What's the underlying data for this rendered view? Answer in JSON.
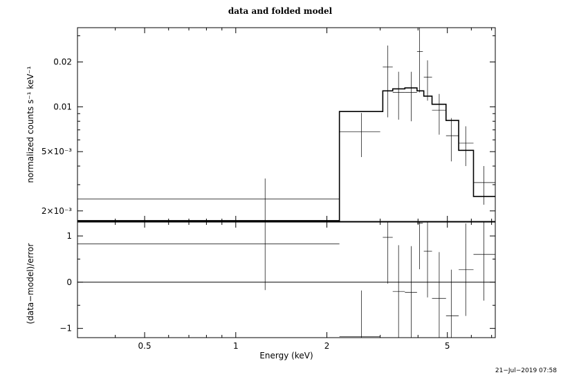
{
  "chart_data": [
    {
      "type": "step-line-with-errorbars",
      "title": "data and folded model",
      "ylabel": "normalized counts s⁻¹ keV⁻¹",
      "x_scale": "log",
      "y_scale": "log",
      "xlim": [
        0.3,
        7.2
      ],
      "ylim": [
        0.0017,
        0.034
      ],
      "y_ticks": [
        {
          "value": 0.002,
          "label": "2×10⁻³"
        },
        {
          "value": 0.005,
          "label": "5×10⁻³"
        },
        {
          "value": 0.01,
          "label": "0.01"
        },
        {
          "value": 0.02,
          "label": "0.02"
        }
      ],
      "data_points": [
        {
          "x": 1.25,
          "xlo": 0.3,
          "xhi": 2.2,
          "y": 0.0024,
          "ylo": 0.0016,
          "yhi": 0.0033
        },
        {
          "x": 2.6,
          "xlo": 2.2,
          "xhi": 3.0,
          "y": 0.0068,
          "ylo": 0.0046,
          "yhi": 0.0091
        },
        {
          "x": 3.18,
          "xlo": 3.06,
          "xhi": 3.3,
          "y": 0.0185,
          "ylo": 0.0085,
          "yhi": 0.0258
        },
        {
          "x": 3.45,
          "xlo": 3.3,
          "xhi": 3.62,
          "y": 0.0125,
          "ylo": 0.0082,
          "yhi": 0.0172
        },
        {
          "x": 3.8,
          "xlo": 3.62,
          "xhi": 3.97,
          "y": 0.0125,
          "ylo": 0.008,
          "yhi": 0.0172
        },
        {
          "x": 4.05,
          "xlo": 3.97,
          "xhi": 4.15,
          "y": 0.0235,
          "ylo": 0.0125,
          "yhi": 0.034
        },
        {
          "x": 4.3,
          "xlo": 4.18,
          "xhi": 4.45,
          "y": 0.0158,
          "ylo": 0.011,
          "yhi": 0.0205
        },
        {
          "x": 4.7,
          "xlo": 4.45,
          "xhi": 4.95,
          "y": 0.0095,
          "ylo": 0.0065,
          "yhi": 0.0122
        },
        {
          "x": 5.15,
          "xlo": 4.95,
          "xhi": 5.45,
          "y": 0.0064,
          "ylo": 0.0043,
          "yhi": 0.0084
        },
        {
          "x": 5.75,
          "xlo": 5.45,
          "xhi": 6.1,
          "y": 0.0057,
          "ylo": 0.004,
          "yhi": 0.0074
        },
        {
          "x": 6.6,
          "xlo": 6.1,
          "xhi": 7.2,
          "y": 0.0031,
          "ylo": 0.0022,
          "yhi": 0.004
        }
      ],
      "model_steps": [
        {
          "xlo": 0.3,
          "xhi": 2.2,
          "y": 0.00172
        },
        {
          "xlo": 2.2,
          "xhi": 3.06,
          "y": 0.0093
        },
        {
          "xlo": 3.06,
          "xhi": 3.3,
          "y": 0.0128
        },
        {
          "xlo": 3.3,
          "xhi": 3.62,
          "y": 0.0132
        },
        {
          "xlo": 3.62,
          "xhi": 3.97,
          "y": 0.0134
        },
        {
          "xlo": 3.97,
          "xhi": 4.18,
          "y": 0.0128
        },
        {
          "xlo": 4.18,
          "xhi": 4.45,
          "y": 0.0118
        },
        {
          "xlo": 4.45,
          "xhi": 4.95,
          "y": 0.0104
        },
        {
          "xlo": 4.95,
          "xhi": 5.45,
          "y": 0.0081
        },
        {
          "xlo": 5.45,
          "xhi": 6.1,
          "y": 0.0051
        },
        {
          "xlo": 6.1,
          "xhi": 7.2,
          "y": 0.0025
        }
      ]
    },
    {
      "type": "scatter-with-errorbars",
      "xlabel": "Energy (keV)",
      "ylabel": "(data−model)/error",
      "x_scale": "log",
      "y_scale": "linear",
      "xlim": [
        0.3,
        7.2
      ],
      "ylim": [
        -1.2,
        1.3
      ],
      "y_ticks": [
        {
          "value": 1,
          "label": "1"
        },
        {
          "value": 0,
          "label": "0"
        },
        {
          "value": -1,
          "label": "−1"
        }
      ],
      "x_ticks": [
        {
          "value": 0.5,
          "label": "0.5"
        },
        {
          "value": 1,
          "label": "1"
        },
        {
          "value": 2,
          "label": "2"
        },
        {
          "value": 5,
          "label": "5"
        }
      ],
      "zero_line": 0,
      "residuals": [
        {
          "x": 1.25,
          "xlo": 0.3,
          "xhi": 2.2,
          "y": 0.83,
          "ylo": -0.17,
          "yhi": 1.83
        },
        {
          "x": 2.6,
          "xlo": 2.2,
          "xhi": 3.0,
          "y": -1.18,
          "ylo": -2.18,
          "yhi": -0.18
        },
        {
          "x": 3.18,
          "xlo": 3.06,
          "xhi": 3.3,
          "y": 0.97,
          "ylo": -0.03,
          "yhi": 1.97
        },
        {
          "x": 3.45,
          "xlo": 3.3,
          "xhi": 3.62,
          "y": -0.2,
          "ylo": -1.2,
          "yhi": 0.8
        },
        {
          "x": 3.8,
          "xlo": 3.62,
          "xhi": 3.97,
          "y": -0.22,
          "ylo": -1.22,
          "yhi": 0.78
        },
        {
          "x": 4.05,
          "xlo": 3.97,
          "xhi": 4.15,
          "y": 1.28,
          "ylo": 0.28,
          "yhi": 2.28
        },
        {
          "x": 4.3,
          "xlo": 4.18,
          "xhi": 4.45,
          "y": 0.67,
          "ylo": -0.33,
          "yhi": 1.67
        },
        {
          "x": 4.7,
          "xlo": 4.45,
          "xhi": 4.95,
          "y": -0.35,
          "ylo": -1.35,
          "yhi": 0.65
        },
        {
          "x": 5.15,
          "xlo": 4.95,
          "xhi": 5.45,
          "y": -0.73,
          "ylo": -1.73,
          "yhi": 0.27
        },
        {
          "x": 5.75,
          "xlo": 5.45,
          "xhi": 6.1,
          "y": 0.27,
          "ylo": -0.73,
          "yhi": 1.27
        },
        {
          "x": 6.6,
          "xlo": 6.1,
          "xhi": 7.2,
          "y": 0.6,
          "ylo": -0.4,
          "yhi": 1.6
        }
      ]
    }
  ],
  "footer": {
    "timestamp": "21−Jul−2019 07:58"
  }
}
